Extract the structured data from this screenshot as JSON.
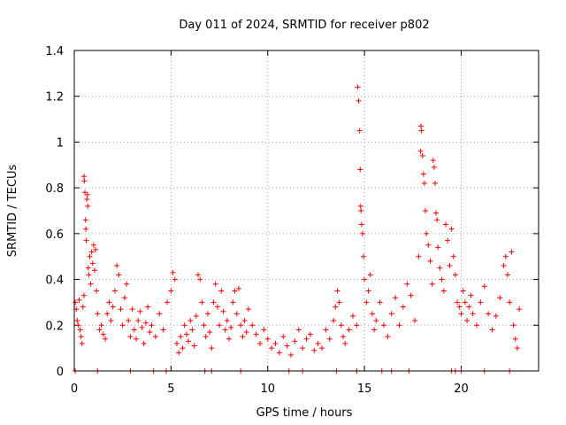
{
  "chart_data": {
    "type": "scatter",
    "title": "Day 011 of 2024, SRMTID for receiver p802",
    "xlabel": "GPS time / hours",
    "ylabel": "SRMTID / TECUs",
    "xlim": [
      0,
      24
    ],
    "ylim": [
      0,
      1.4
    ],
    "x_ticks": [
      0,
      5,
      10,
      15,
      20
    ],
    "y_ticks": [
      0,
      0.2,
      0.4,
      0.6,
      0.8,
      1,
      1.2,
      1.4
    ],
    "x_tick_labels": [
      "0",
      "5",
      "10",
      "15",
      "20"
    ],
    "y_tick_labels": [
      "0",
      "0.2",
      "0.4",
      "0.6",
      "0.8",
      "1",
      "1.2",
      "1.4"
    ],
    "grid": true,
    "marker": "+",
    "color": "#ff0000",
    "series": [
      {
        "name": "SRMTID",
        "points": [
          [
            0.05,
            0.3
          ],
          [
            0.1,
            0.27
          ],
          [
            0.15,
            0.22
          ],
          [
            0.2,
            0.2
          ],
          [
            0.25,
            0.31
          ],
          [
            0.3,
            0.18
          ],
          [
            0.35,
            0.15
          ],
          [
            0.4,
            0.12
          ],
          [
            0.45,
            0.28
          ],
          [
            0.5,
            0.33
          ],
          [
            0.5,
            0.85
          ],
          [
            0.52,
            0.83
          ],
          [
            0.55,
            0.78
          ],
          [
            0.58,
            0.66
          ],
          [
            0.6,
            0.62
          ],
          [
            0.62,
            0.57
          ],
          [
            0.65,
            0.75
          ],
          [
            0.68,
            0.77
          ],
          [
            0.7,
            0.72
          ],
          [
            0.72,
            0.45
          ],
          [
            0.75,
            0.42
          ],
          [
            0.8,
            0.5
          ],
          [
            0.85,
            0.38
          ],
          [
            0.9,
            0.52
          ],
          [
            0.95,
            0.47
          ],
          [
            1.0,
            0.55
          ],
          [
            1.05,
            0.44
          ],
          [
            1.1,
            0.53
          ],
          [
            1.15,
            0.35
          ],
          [
            1.2,
            0.25
          ],
          [
            1.3,
            0.18
          ],
          [
            1.4,
            0.2
          ],
          [
            1.5,
            0.16
          ],
          [
            1.6,
            0.14
          ],
          [
            1.7,
            0.25
          ],
          [
            1.8,
            0.3
          ],
          [
            1.9,
            0.22
          ],
          [
            2.0,
            0.28
          ],
          [
            2.1,
            0.35
          ],
          [
            2.2,
            0.46
          ],
          [
            2.3,
            0.42
          ],
          [
            2.4,
            0.27
          ],
          [
            2.5,
            0.2
          ],
          [
            2.6,
            0.32
          ],
          [
            2.7,
            0.38
          ],
          [
            2.8,
            0.22
          ],
          [
            2.9,
            0.15
          ],
          [
            3.0,
            0.27
          ],
          [
            3.1,
            0.18
          ],
          [
            3.2,
            0.14
          ],
          [
            3.3,
            0.22
          ],
          [
            3.4,
            0.26
          ],
          [
            3.5,
            0.19
          ],
          [
            3.6,
            0.12
          ],
          [
            3.7,
            0.21
          ],
          [
            3.8,
            0.28
          ],
          [
            3.9,
            0.17
          ],
          [
            4.0,
            0.2
          ],
          [
            4.2,
            0.15
          ],
          [
            4.4,
            0.25
          ],
          [
            4.6,
            0.18
          ],
          [
            4.8,
            0.3
          ],
          [
            5.0,
            0.35
          ],
          [
            5.1,
            0.43
          ],
          [
            5.2,
            0.4
          ],
          [
            5.3,
            0.12
          ],
          [
            5.4,
            0.08
          ],
          [
            5.5,
            0.15
          ],
          [
            5.6,
            0.1
          ],
          [
            5.7,
            0.2
          ],
          [
            5.8,
            0.16
          ],
          [
            5.9,
            0.13
          ],
          [
            6.0,
            0.22
          ],
          [
            6.1,
            0.18
          ],
          [
            6.2,
            0.11
          ],
          [
            6.3,
            0.24
          ],
          [
            6.4,
            0.42
          ],
          [
            6.5,
            0.4
          ],
          [
            6.6,
            0.3
          ],
          [
            6.7,
            0.2
          ],
          [
            6.8,
            0.15
          ],
          [
            6.9,
            0.25
          ],
          [
            7.0,
            0.17
          ],
          [
            7.1,
            0.1
          ],
          [
            7.2,
            0.3
          ],
          [
            7.3,
            0.38
          ],
          [
            7.4,
            0.28
          ],
          [
            7.5,
            0.2
          ],
          [
            7.6,
            0.35
          ],
          [
            7.7,
            0.26
          ],
          [
            7.8,
            0.18
          ],
          [
            7.9,
            0.22
          ],
          [
            8.0,
            0.14
          ],
          [
            8.1,
            0.19
          ],
          [
            8.2,
            0.3
          ],
          [
            8.3,
            0.35
          ],
          [
            8.4,
            0.25
          ],
          [
            8.5,
            0.36
          ],
          [
            8.6,
            0.2
          ],
          [
            8.7,
            0.15
          ],
          [
            8.8,
            0.22
          ],
          [
            8.9,
            0.17
          ],
          [
            9.0,
            0.27
          ],
          [
            9.2,
            0.2
          ],
          [
            9.4,
            0.16
          ],
          [
            9.6,
            0.12
          ],
          [
            9.8,
            0.18
          ],
          [
            10.0,
            0.14
          ],
          [
            10.2,
            0.1
          ],
          [
            10.4,
            0.12
          ],
          [
            10.6,
            0.08
          ],
          [
            10.8,
            0.15
          ],
          [
            11.0,
            0.11
          ],
          [
            11.2,
            0.07
          ],
          [
            11.4,
            0.13
          ],
          [
            11.6,
            0.18
          ],
          [
            11.8,
            0.1
          ],
          [
            12.0,
            0.14
          ],
          [
            12.2,
            0.16
          ],
          [
            12.4,
            0.09
          ],
          [
            12.6,
            0.12
          ],
          [
            12.8,
            0.1
          ],
          [
            13.0,
            0.18
          ],
          [
            13.2,
            0.14
          ],
          [
            13.4,
            0.22
          ],
          [
            13.5,
            0.28
          ],
          [
            13.6,
            0.35
          ],
          [
            13.7,
            0.3
          ],
          [
            13.8,
            0.2
          ],
          [
            13.9,
            0.15
          ],
          [
            14.0,
            0.12
          ],
          [
            14.2,
            0.18
          ],
          [
            14.4,
            0.24
          ],
          [
            14.6,
            0.2
          ],
          [
            14.65,
            1.24
          ],
          [
            14.7,
            1.18
          ],
          [
            14.75,
            1.05
          ],
          [
            14.78,
            0.88
          ],
          [
            14.8,
            0.72
          ],
          [
            14.82,
            0.7
          ],
          [
            14.85,
            0.64
          ],
          [
            14.9,
            0.6
          ],
          [
            14.95,
            0.5
          ],
          [
            15.0,
            0.4
          ],
          [
            15.1,
            0.3
          ],
          [
            15.2,
            0.35
          ],
          [
            15.3,
            0.42
          ],
          [
            15.4,
            0.25
          ],
          [
            15.5,
            0.18
          ],
          [
            15.6,
            0.22
          ],
          [
            15.8,
            0.3
          ],
          [
            16.0,
            0.2
          ],
          [
            16.2,
            0.15
          ],
          [
            16.4,
            0.25
          ],
          [
            16.6,
            0.32
          ],
          [
            16.8,
            0.2
          ],
          [
            17.0,
            0.28
          ],
          [
            17.2,
            0.38
          ],
          [
            17.4,
            0.33
          ],
          [
            17.6,
            0.22
          ],
          [
            17.8,
            0.5
          ],
          [
            17.9,
            0.96
          ],
          [
            17.92,
            1.07
          ],
          [
            17.95,
            1.05
          ],
          [
            18.0,
            0.94
          ],
          [
            18.05,
            0.86
          ],
          [
            18.1,
            0.82
          ],
          [
            18.15,
            0.7
          ],
          [
            18.2,
            0.6
          ],
          [
            18.3,
            0.55
          ],
          [
            18.4,
            0.48
          ],
          [
            18.5,
            0.38
          ],
          [
            18.55,
            0.92
          ],
          [
            18.6,
            0.89
          ],
          [
            18.65,
            0.82
          ],
          [
            18.7,
            0.69
          ],
          [
            18.75,
            0.66
          ],
          [
            18.8,
            0.54
          ],
          [
            18.9,
            0.45
          ],
          [
            19.0,
            0.4
          ],
          [
            19.1,
            0.35
          ],
          [
            19.2,
            0.64
          ],
          [
            19.3,
            0.57
          ],
          [
            19.4,
            0.46
          ],
          [
            19.5,
            0.62
          ],
          [
            19.6,
            0.5
          ],
          [
            19.7,
            0.42
          ],
          [
            19.8,
            0.3
          ],
          [
            19.9,
            0.28
          ],
          [
            20.0,
            0.25
          ],
          [
            20.1,
            0.35
          ],
          [
            20.2,
            0.3
          ],
          [
            20.3,
            0.22
          ],
          [
            20.4,
            0.28
          ],
          [
            20.5,
            0.33
          ],
          [
            20.6,
            0.25
          ],
          [
            20.8,
            0.2
          ],
          [
            21.0,
            0.3
          ],
          [
            21.2,
            0.37
          ],
          [
            21.4,
            0.25
          ],
          [
            21.6,
            0.18
          ],
          [
            21.8,
            0.24
          ],
          [
            22.0,
            0.32
          ],
          [
            22.2,
            0.46
          ],
          [
            22.3,
            0.5
          ],
          [
            22.4,
            0.42
          ],
          [
            22.5,
            0.3
          ],
          [
            22.6,
            0.52
          ],
          [
            22.7,
            0.2
          ],
          [
            22.8,
            0.14
          ],
          [
            22.9,
            0.1
          ],
          [
            23.0,
            0.27
          ]
        ]
      }
    ],
    "baseline_markers_x": [
      0.05,
      1.2,
      2.9,
      4.1,
      4.75,
      6.75,
      7.1,
      8.6,
      11.1,
      11.8,
      13.55,
      14.6,
      15.9,
      16.4,
      17.3,
      19.5,
      19.7,
      20.0,
      21.2,
      22.5
    ]
  }
}
